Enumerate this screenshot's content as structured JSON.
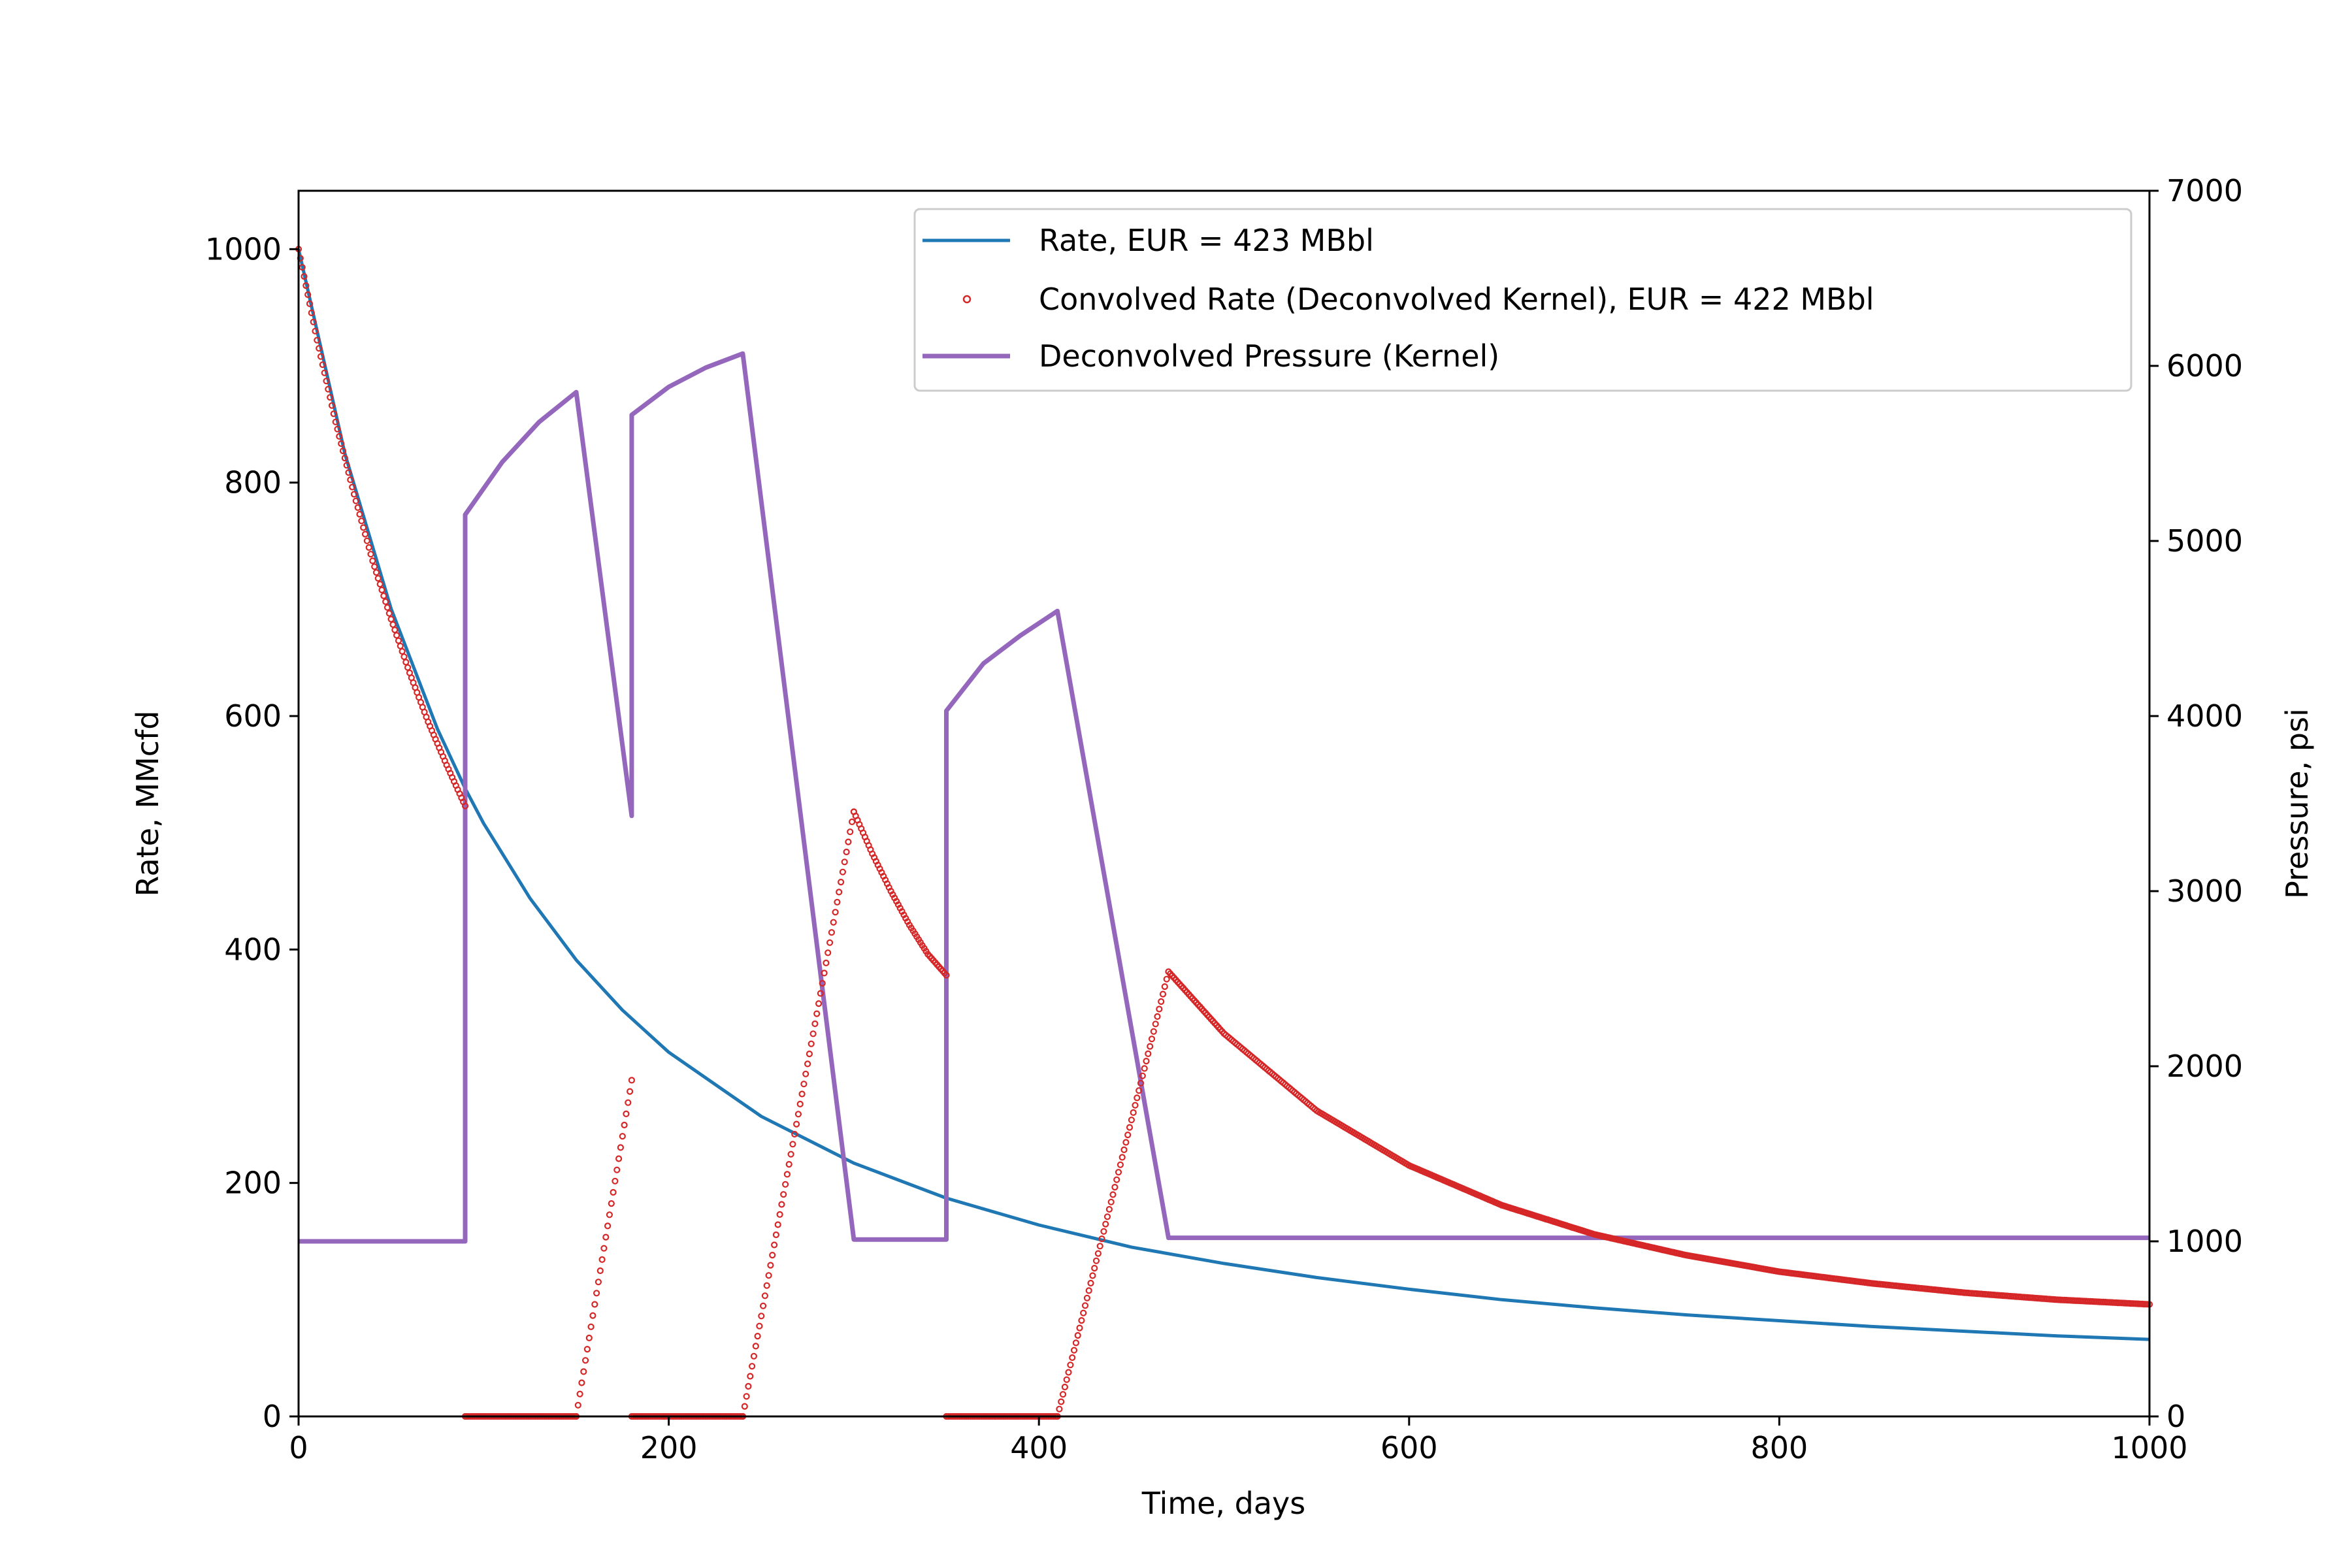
{
  "chart_data": {
    "type": "line",
    "title": "",
    "xlabel": "Time, days",
    "ylabel_left": "Rate, MMcfd",
    "ylabel_right": "Pressure, psi",
    "xlim": [
      0,
      1000
    ],
    "ylim_left": [
      0,
      1050
    ],
    "ylim_right": [
      0,
      7000
    ],
    "x_ticks": [
      0,
      200,
      400,
      600,
      800,
      1000
    ],
    "y_ticks_left": [
      0,
      200,
      400,
      600,
      800,
      1000
    ],
    "y_ticks_right": [
      0,
      1000,
      2000,
      3000,
      4000,
      5000,
      6000,
      7000
    ],
    "grid": false,
    "legend_position": "upper-right",
    "colors": {
      "rate": "#1f77b4",
      "convolved": "#d62728",
      "pressure": "#9467bd"
    },
    "series": [
      {
        "name": "Rate, EUR = 423 MBbl",
        "axis": "left",
        "style": "line",
        "x": [
          0,
          25,
          50,
          75,
          90,
          100,
          125,
          150,
          175,
          200,
          250,
          300,
          350,
          400,
          450,
          500,
          550,
          600,
          650,
          700,
          750,
          800,
          850,
          900,
          950,
          1000
        ],
        "y": [
          1000,
          825,
          692,
          589,
          538,
          508,
          444,
          391,
          348,
          312,
          257,
          217,
          187,
          164,
          145,
          131,
          119,
          109,
          100,
          93,
          87,
          82,
          77,
          73,
          69,
          66
        ]
      },
      {
        "name": "Convolved Rate (Deconvolved Kernel), EUR = 422 MBbl",
        "axis": "left",
        "style": "markers",
        "segments": [
          {
            "x": [
              0,
              10,
              20,
              30,
              40,
              50,
              60,
              70,
              80,
              90
            ],
            "y": [
              1000,
              922,
              852,
              790,
              733,
              683,
              637,
              595,
              558,
              523
            ]
          },
          {
            "x": [
              90,
              100,
              110,
              120,
              130,
              140,
              150
            ],
            "y": [
              0,
              0,
              0,
              0,
              0,
              0,
              0
            ]
          },
          {
            "x": [
              150,
              155,
              160,
              165,
              170,
              175,
              180
            ],
            "y": [
              0,
              48,
              96,
              144,
              192,
              240,
              288
            ]
          },
          {
            "x": [
              180,
              190,
              200,
              210,
              220,
              230,
              240
            ],
            "y": [
              0,
              0,
              0,
              0,
              0,
              0,
              0
            ]
          },
          {
            "x": [
              240,
              250,
              260,
              270,
              280,
              290,
              300
            ],
            "y": [
              0,
              86,
              173,
              259,
              345,
              432,
              518
            ]
          },
          {
            "x": [
              300,
              310,
              320,
              330,
              340,
              350
            ],
            "y": [
              518,
              482,
              450,
              421,
              396,
              378
            ]
          },
          {
            "x": [
              350,
              360,
              370,
              380,
              390,
              400,
              410
            ],
            "y": [
              0,
              0,
              0,
              0,
              0,
              0,
              0
            ]
          },
          {
            "x": [
              410,
              420,
              430,
              440,
              450,
              460,
              470
            ],
            "y": [
              0,
              63,
              127,
              190,
              254,
              317,
              381
            ]
          },
          {
            "x": [
              470,
              500,
              550,
              600,
              650,
              700,
              750,
              800,
              850,
              900,
              950,
              1000
            ],
            "y": [
              381,
              328,
              262,
              215,
              181,
              156,
              138,
              124,
              114,
              106,
              100,
              96
            ]
          }
        ]
      },
      {
        "name": "Deconvolved Pressure (Kernel)",
        "axis": "right",
        "style": "line",
        "x": [
          0,
          90,
          90,
          110,
          130,
          150,
          180,
          180,
          200,
          220,
          240,
          300,
          350,
          350,
          370,
          390,
          410,
          470,
          1000
        ],
        "y": [
          1000,
          1000,
          5150,
          5450,
          5680,
          5850,
          3430,
          5720,
          5880,
          5990,
          6070,
          1010,
          1010,
          4030,
          4300,
          4460,
          4600,
          1020,
          1020
        ]
      }
    ]
  }
}
